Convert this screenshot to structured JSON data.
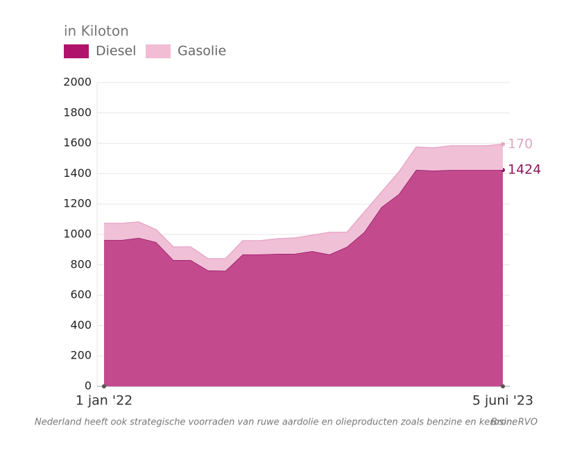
{
  "chart_data": {
    "type": "stacked-area",
    "subtitle": "in Kiloton",
    "categories": [
      "1 jan '22",
      null,
      null,
      null,
      null,
      null,
      null,
      null,
      null,
      null,
      null,
      null,
      null,
      null,
      null,
      null,
      null,
      null,
      null,
      null,
      null,
      null,
      null,
      "5 juni '23"
    ],
    "series": [
      {
        "name": "Diesel",
        "color": "#b0136c",
        "values": [
          963,
          963,
          977,
          950,
          831,
          831,
          763,
          760,
          868,
          868,
          872,
          872,
          890,
          868,
          918,
          1014,
          1180,
          1265,
          1425,
          1420,
          1424,
          1424,
          1424,
          1424
        ]
      },
      {
        "name": "Gasolie",
        "color": "#f2bcd5",
        "values": [
          110,
          110,
          105,
          82,
          87,
          87,
          77,
          80,
          91,
          91,
          100,
          105,
          105,
          146,
          96,
          132,
          100,
          146,
          150,
          150,
          160,
          160,
          160,
          170
        ]
      }
    ],
    "ylim": [
      0,
      2000
    ],
    "yticks": [
      0,
      200,
      400,
      600,
      800,
      1000,
      1200,
      1400,
      1600,
      1800,
      2000
    ],
    "grid": true,
    "note": "Nederland heeft ook strategische voorraden van ruwe aardolie en olieproducten zoals benzine en kerosine",
    "source": "Bron: RVO"
  }
}
